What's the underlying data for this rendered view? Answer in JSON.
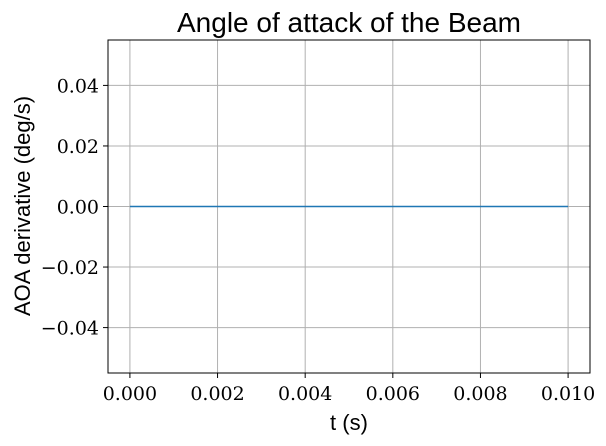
{
  "chart_data": {
    "type": "line",
    "title": "Angle of attack of the Beam",
    "xlabel": "t (s)",
    "ylabel": "AOA derivative (deg/s)",
    "xlim": [
      -0.0005,
      0.0105
    ],
    "ylim": [
      -0.055,
      0.055
    ],
    "xticks": [
      0.0,
      0.002,
      0.004,
      0.006,
      0.008,
      0.01
    ],
    "xtick_labels": [
      "0.000",
      "0.002",
      "0.004",
      "0.006",
      "0.008",
      "0.010"
    ],
    "yticks": [
      -0.04,
      -0.02,
      0.0,
      0.02,
      0.04
    ],
    "ytick_labels": [
      "−0.04",
      "−0.02",
      "0.00",
      "0.02",
      "0.04"
    ],
    "grid": true,
    "series": [
      {
        "x": [
          0.0,
          0.01
        ],
        "y": [
          0.0,
          0.0
        ],
        "color": "#1f77b4"
      }
    ]
  }
}
